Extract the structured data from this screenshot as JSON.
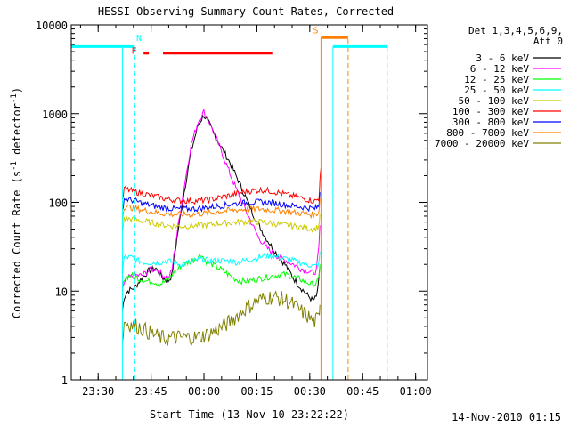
{
  "chart_data": {
    "type": "line",
    "title": "HESSI Observing Summary Count Rates, Corrected",
    "xlabel": "Start Time (13-Nov-10 23:22:22)",
    "ylabel": "Corrected Count Rate (s⁻¹ detector⁻¹)",
    "ylabel_main": "Corrected Count Rate (s",
    "ylabel_sup1": "-1",
    "ylabel_mid": " detector",
    "ylabel_sup2": "-1",
    "ylabel_end": ")",
    "yscale": "log",
    "ylim": [
      1,
      10000
    ],
    "x_unit": "minutes after 13-Nov-10 23:22:22",
    "xlim": [
      0,
      101
    ],
    "x_ticks": [
      {
        "label": "23:30",
        "x": 7.63
      },
      {
        "label": "23:45",
        "x": 22.63
      },
      {
        "label": "00:00",
        "x": 37.63
      },
      {
        "label": "00:15",
        "x": 52.63
      },
      {
        "label": "00:30",
        "x": 67.63
      },
      {
        "label": "00:45",
        "x": 82.63
      },
      {
        "label": "01:00",
        "x": 97.63
      }
    ],
    "y_ticks": [
      {
        "label": "1",
        "v": 1
      },
      {
        "label": "10",
        "v": 10
      },
      {
        "label": "100",
        "v": 100
      },
      {
        "label": "1000",
        "v": 1000
      },
      {
        "label": "10000",
        "v": 10000
      }
    ],
    "legend_header": [
      "Det 1,3,4,5,6,9,",
      "Att 0"
    ],
    "legend_placement": "right",
    "series": [
      {
        "name": "3 - 6 keV",
        "color": "#000000",
        "points": [
          [
            14.5,
            6
          ],
          [
            15,
            8.5
          ],
          [
            16,
            10
          ],
          [
            18,
            11
          ],
          [
            20,
            14
          ],
          [
            22,
            17
          ],
          [
            24,
            18
          ],
          [
            26,
            14
          ],
          [
            27.5,
            13
          ],
          [
            28.5,
            15
          ],
          [
            30,
            40
          ],
          [
            32,
            130
          ],
          [
            34,
            380
          ],
          [
            36,
            750
          ],
          [
            37.6,
            960
          ],
          [
            39,
            780
          ],
          [
            41,
            540
          ],
          [
            43,
            390
          ],
          [
            45,
            280
          ],
          [
            47,
            190
          ],
          [
            49,
            125
          ],
          [
            51,
            82
          ],
          [
            53,
            57
          ],
          [
            55,
            41
          ],
          [
            57,
            31
          ],
          [
            59,
            24
          ],
          [
            61,
            19
          ],
          [
            63,
            14
          ],
          [
            65,
            11
          ],
          [
            67,
            9
          ],
          [
            68.5,
            7.8
          ],
          [
            69.5,
            8.5
          ],
          [
            70.2,
            13
          ],
          [
            70.5,
            19
          ]
        ]
      },
      {
        "name": "6 - 12 keV",
        "color": "#ff00ff",
        "points": [
          [
            14.5,
            11
          ],
          [
            16,
            14
          ],
          [
            18,
            15
          ],
          [
            20,
            15
          ],
          [
            22,
            17
          ],
          [
            24,
            18
          ],
          [
            26,
            15
          ],
          [
            27.5,
            14
          ],
          [
            28.5,
            17
          ],
          [
            30,
            45
          ],
          [
            32,
            150
          ],
          [
            34,
            450
          ],
          [
            36,
            820
          ],
          [
            37.6,
            1050
          ],
          [
            39,
            820
          ],
          [
            41,
            540
          ],
          [
            43,
            340
          ],
          [
            45,
            210
          ],
          [
            47,
            135
          ],
          [
            49,
            90
          ],
          [
            51,
            60
          ],
          [
            53,
            41
          ],
          [
            55,
            32
          ],
          [
            57,
            27
          ],
          [
            59,
            24
          ],
          [
            61,
            22
          ],
          [
            63,
            20
          ],
          [
            65,
            18
          ],
          [
            67,
            17
          ],
          [
            68.5,
            16
          ],
          [
            69.5,
            17
          ],
          [
            70.2,
            30
          ],
          [
            70.5,
            55
          ]
        ]
      },
      {
        "name": "12 - 25 keV",
        "color": "#00ff00",
        "points": [
          [
            14.5,
            10
          ],
          [
            15,
            14
          ],
          [
            17,
            15
          ],
          [
            19,
            14
          ],
          [
            21,
            13
          ],
          [
            23,
            13
          ],
          [
            25,
            12
          ],
          [
            27,
            13
          ],
          [
            29,
            16
          ],
          [
            31,
            19
          ],
          [
            33,
            21
          ],
          [
            35,
            23
          ],
          [
            37,
            26
          ],
          [
            38,
            22
          ],
          [
            40,
            20
          ],
          [
            42,
            18
          ],
          [
            44,
            16
          ],
          [
            46,
            14
          ],
          [
            48,
            13
          ],
          [
            50,
            13
          ],
          [
            52,
            13.5
          ],
          [
            54,
            14
          ],
          [
            56,
            14.5
          ],
          [
            58,
            15
          ],
          [
            60,
            15.5
          ],
          [
            62,
            15
          ],
          [
            64,
            14
          ],
          [
            66,
            13
          ],
          [
            68,
            12
          ],
          [
            69.5,
            12
          ],
          [
            70.2,
            14
          ],
          [
            70.5,
            20
          ]
        ]
      },
      {
        "name": "25 - 50 keV",
        "color": "#00ffff",
        "points": [
          [
            14.5,
            16
          ],
          [
            15,
            24
          ],
          [
            17,
            24
          ],
          [
            19,
            22
          ],
          [
            21,
            21
          ],
          [
            23,
            21
          ],
          [
            25,
            21
          ],
          [
            27,
            22
          ],
          [
            29,
            21
          ],
          [
            31,
            20
          ],
          [
            33,
            21
          ],
          [
            35,
            22
          ],
          [
            37,
            23
          ],
          [
            39,
            22
          ],
          [
            41,
            22
          ],
          [
            43,
            22
          ],
          [
            45,
            22
          ],
          [
            47,
            21
          ],
          [
            49,
            22
          ],
          [
            51,
            23
          ],
          [
            53,
            24
          ],
          [
            55,
            25
          ],
          [
            57,
            25
          ],
          [
            59,
            24
          ],
          [
            61,
            23
          ],
          [
            63,
            22
          ],
          [
            65,
            21
          ],
          [
            67,
            20
          ],
          [
            69,
            19
          ],
          [
            70.2,
            20
          ],
          [
            70.5,
            28
          ]
        ]
      },
      {
        "name": "50 - 100 keV",
        "color": "#cccc00",
        "points": [
          [
            14.5,
            45
          ],
          [
            15,
            66
          ],
          [
            18,
            64
          ],
          [
            21,
            61
          ],
          [
            24,
            58
          ],
          [
            27,
            55
          ],
          [
            30,
            54
          ],
          [
            33,
            54
          ],
          [
            36,
            55
          ],
          [
            39,
            56
          ],
          [
            42,
            58
          ],
          [
            45,
            59
          ],
          [
            48,
            60
          ],
          [
            51,
            61
          ],
          [
            54,
            60
          ],
          [
            57,
            58
          ],
          [
            60,
            56
          ],
          [
            63,
            54
          ],
          [
            66,
            52
          ],
          [
            69,
            50
          ],
          [
            70.2,
            54
          ],
          [
            70.5,
            75
          ]
        ]
      },
      {
        "name": "100 - 300 keV",
        "color": "#ff0000",
        "points": [
          [
            14.5,
            100
          ],
          [
            15,
            142
          ],
          [
            18,
            132
          ],
          [
            21,
            124
          ],
          [
            24,
            116
          ],
          [
            27,
            109
          ],
          [
            30,
            105
          ],
          [
            33,
            104
          ],
          [
            36,
            104
          ],
          [
            39,
            107
          ],
          [
            42,
            113
          ],
          [
            45,
            120
          ],
          [
            48,
            128
          ],
          [
            51,
            135
          ],
          [
            54,
            138
          ],
          [
            57,
            133
          ],
          [
            60,
            125
          ],
          [
            63,
            117
          ],
          [
            66,
            110
          ],
          [
            69,
            103
          ],
          [
            70.2,
            110
          ],
          [
            70.5,
            170
          ],
          [
            70.8,
            240
          ]
        ]
      },
      {
        "name": "300 - 800 keV",
        "color": "#0000ff",
        "points": [
          [
            14.5,
            80
          ],
          [
            15,
            110
          ],
          [
            18,
            104
          ],
          [
            21,
            96
          ],
          [
            24,
            90
          ],
          [
            27,
            86
          ],
          [
            30,
            84
          ],
          [
            33,
            84
          ],
          [
            36,
            85
          ],
          [
            39,
            88
          ],
          [
            42,
            91
          ],
          [
            45,
            95
          ],
          [
            48,
            98
          ],
          [
            51,
            100
          ],
          [
            54,
            101
          ],
          [
            57,
            99
          ],
          [
            60,
            95
          ],
          [
            63,
            91
          ],
          [
            66,
            88
          ],
          [
            69,
            85
          ],
          [
            70.2,
            90
          ],
          [
            70.5,
            130
          ]
        ]
      },
      {
        "name": "800 - 7000 keV",
        "color": "#ff8000",
        "points": [
          [
            14.5,
            65
          ],
          [
            15,
            90
          ],
          [
            18,
            86
          ],
          [
            21,
            81
          ],
          [
            24,
            77
          ],
          [
            27,
            74
          ],
          [
            30,
            73
          ],
          [
            33,
            73
          ],
          [
            36,
            74
          ],
          [
            39,
            76
          ],
          [
            42,
            79
          ],
          [
            45,
            81
          ],
          [
            48,
            83
          ],
          [
            51,
            84
          ],
          [
            54,
            84
          ],
          [
            57,
            82
          ],
          [
            60,
            80
          ],
          [
            63,
            77
          ],
          [
            66,
            75
          ],
          [
            69,
            72
          ],
          [
            70.2,
            78
          ],
          [
            70.5,
            110
          ]
        ]
      },
      {
        "name": "7000 - 20000 keV",
        "color": "#808000",
        "points": [
          [
            14.5,
            2.5
          ],
          [
            15,
            4.5
          ],
          [
            17,
            4.2
          ],
          [
            19,
            4
          ],
          [
            21,
            3.6
          ],
          [
            23,
            3.3
          ],
          [
            25,
            3
          ],
          [
            27,
            2.9
          ],
          [
            29,
            3
          ],
          [
            31,
            3
          ],
          [
            33,
            3
          ],
          [
            35,
            3
          ],
          [
            37,
            3.1
          ],
          [
            39,
            3.3
          ],
          [
            41,
            3.6
          ],
          [
            43,
            4
          ],
          [
            45,
            4.5
          ],
          [
            47,
            5.3
          ],
          [
            49,
            6.2
          ],
          [
            51,
            7
          ],
          [
            53,
            7.8
          ],
          [
            55,
            8.4
          ],
          [
            57,
            8.6
          ],
          [
            59,
            8.3
          ],
          [
            61,
            7.8
          ],
          [
            63,
            7
          ],
          [
            65,
            6
          ],
          [
            67,
            5.2
          ],
          [
            69,
            4.5
          ],
          [
            70.2,
            5
          ],
          [
            70.5,
            7
          ]
        ]
      }
    ],
    "segments": [
      {
        "name": "N",
        "color": "#00ffff",
        "x": [
          14.5,
          14.5
        ],
        "y": [
          1,
          5700
        ],
        "dash": false
      },
      {
        "name": "N",
        "color": "#00ffff",
        "x": [
          18,
          18
        ],
        "y": [
          1,
          5700
        ],
        "dash": true
      },
      {
        "name": "S",
        "color": "#ff8000",
        "x": [
          70.8,
          70.8
        ],
        "y": [
          1,
          7200
        ],
        "dash": false
      },
      {
        "name": "S",
        "color": "#ff8000",
        "x": [
          78.5,
          78.5
        ],
        "y": [
          1,
          7200
        ],
        "dash": true
      },
      {
        "name": "",
        "color": "#00ffff",
        "x": [
          74.2,
          74.2
        ],
        "y": [
          1,
          5700
        ],
        "dash": false
      },
      {
        "name": "",
        "color": "#00ffff",
        "x": [
          89.6,
          89.6
        ],
        "y": [
          1,
          5700
        ],
        "dash": true
      }
    ],
    "bars": [
      {
        "name": "night",
        "color": "#00ffff",
        "x": [
          0,
          18
        ],
        "y": 5700
      },
      {
        "name": "night",
        "color": "#00ffff",
        "x": [
          74.2,
          89.6
        ],
        "y": 5700
      },
      {
        "name": "SAA",
        "color": "#ff8000",
        "x": [
          70.8,
          78.5
        ],
        "y": 7200
      },
      {
        "name": "flare",
        "color": "#ff0000",
        "x": [
          20.5,
          22
        ],
        "y": 4800
      },
      {
        "name": "flare",
        "color": "#ff0000",
        "x": [
          26,
          57
        ],
        "y": 4800
      }
    ],
    "annotations": [
      {
        "text": "N",
        "color": "#00ffff",
        "x": 19.2,
        "y": 6600
      },
      {
        "text": "F",
        "color": "#ff0000",
        "x": 17.8,
        "y": 4700
      },
      {
        "text": "S",
        "color": "#ff8000",
        "x": 69.3,
        "y": 8000
      }
    ],
    "footer_timestamp": "14-Nov-2010 01:15"
  }
}
